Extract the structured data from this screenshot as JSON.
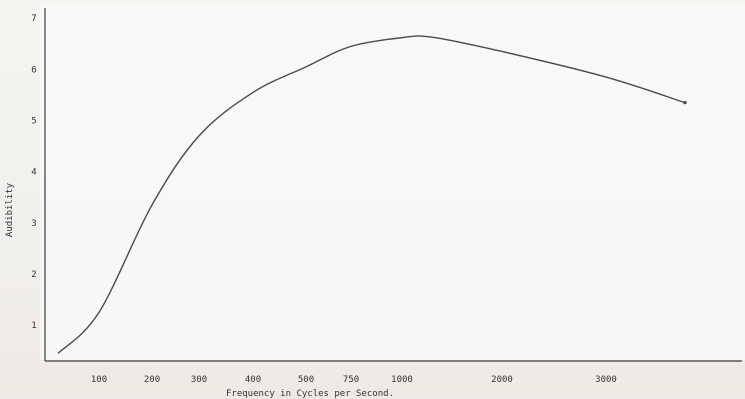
{
  "chart_data": {
    "type": "line",
    "title": "",
    "xlabel": "Frequency in Cycles per Second.",
    "ylabel": "Audibility",
    "grid": false,
    "x_tick_labels": [
      "100",
      "200",
      "300",
      "400",
      "500",
      "750",
      "1000",
      "2000",
      "3000"
    ],
    "y_tick_labels": [
      "1",
      "2",
      "3",
      "4",
      "5",
      "6",
      "7"
    ],
    "ylim": [
      0.3,
      7.2
    ],
    "series": [
      {
        "points": [
          {
            "x": 60,
            "y": 0.45
          },
          {
            "x": 100,
            "y": 1.25
          },
          {
            "x": 200,
            "y": 3.35
          },
          {
            "x": 300,
            "y": 4.7
          },
          {
            "x": 400,
            "y": 5.55
          },
          {
            "x": 500,
            "y": 6.05
          },
          {
            "x": 750,
            "y": 6.45
          },
          {
            "x": 1000,
            "y": 6.62
          },
          {
            "x": 1300,
            "y": 6.63
          },
          {
            "x": 2000,
            "y": 6.35
          },
          {
            "x": 3000,
            "y": 5.85
          },
          {
            "x": 4000,
            "y": 5.35
          }
        ]
      }
    ]
  }
}
